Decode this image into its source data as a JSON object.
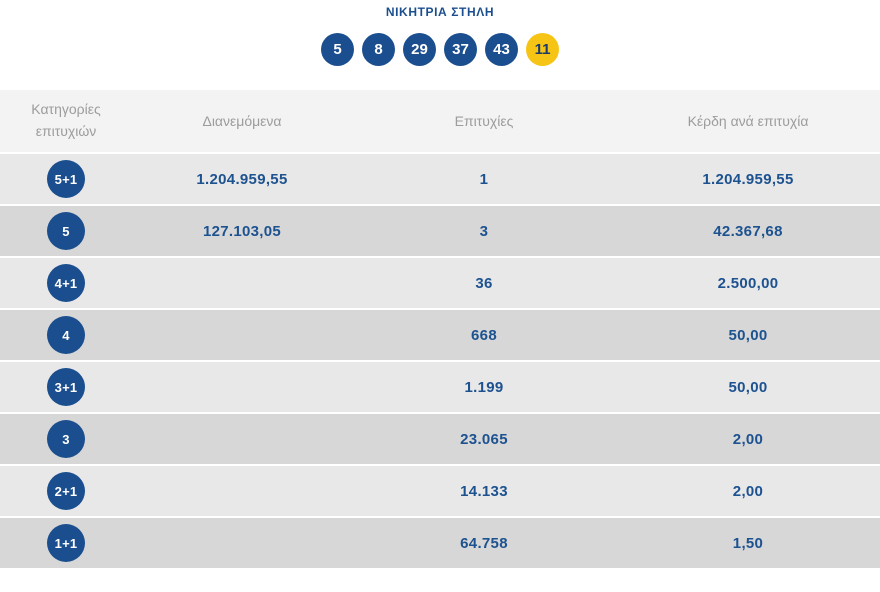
{
  "title": "ΝΙΚΗΤΡΙΑ ΣΤΗΛΗ",
  "winning_numbers": {
    "main": [
      "5",
      "8",
      "29",
      "37",
      "43"
    ],
    "bonus": "11"
  },
  "colors": {
    "ball_blue": "#1b4e8e",
    "ball_yellow": "#f6c414",
    "bonus_text": "#1b3a6b",
    "value_blue": "#1d5290",
    "header_text": "#9c9c9c",
    "header_bg": "#f3f3f3",
    "row_light": "#e8e8e8",
    "row_dark": "#d7d7d7"
  },
  "table": {
    "headers": [
      "Κατηγορίες επιτυχιών",
      "Διανεμόμενα",
      "Επιτυχίες",
      "Κέρδη ανά επιτυχία"
    ],
    "rows": [
      {
        "category": "5+1",
        "distributed": "1.204.959,55",
        "winners": "1",
        "prize": "1.204.959,55"
      },
      {
        "category": "5",
        "distributed": "127.103,05",
        "winners": "3",
        "prize": "42.367,68"
      },
      {
        "category": "4+1",
        "distributed": "",
        "winners": "36",
        "prize": "2.500,00"
      },
      {
        "category": "4",
        "distributed": "",
        "winners": "668",
        "prize": "50,00"
      },
      {
        "category": "3+1",
        "distributed": "",
        "winners": "1.199",
        "prize": "50,00"
      },
      {
        "category": "3",
        "distributed": "",
        "winners": "23.065",
        "prize": "2,00"
      },
      {
        "category": "2+1",
        "distributed": "",
        "winners": "14.133",
        "prize": "2,00"
      },
      {
        "category": "1+1",
        "distributed": "",
        "winners": "64.758",
        "prize": "1,50"
      }
    ]
  }
}
